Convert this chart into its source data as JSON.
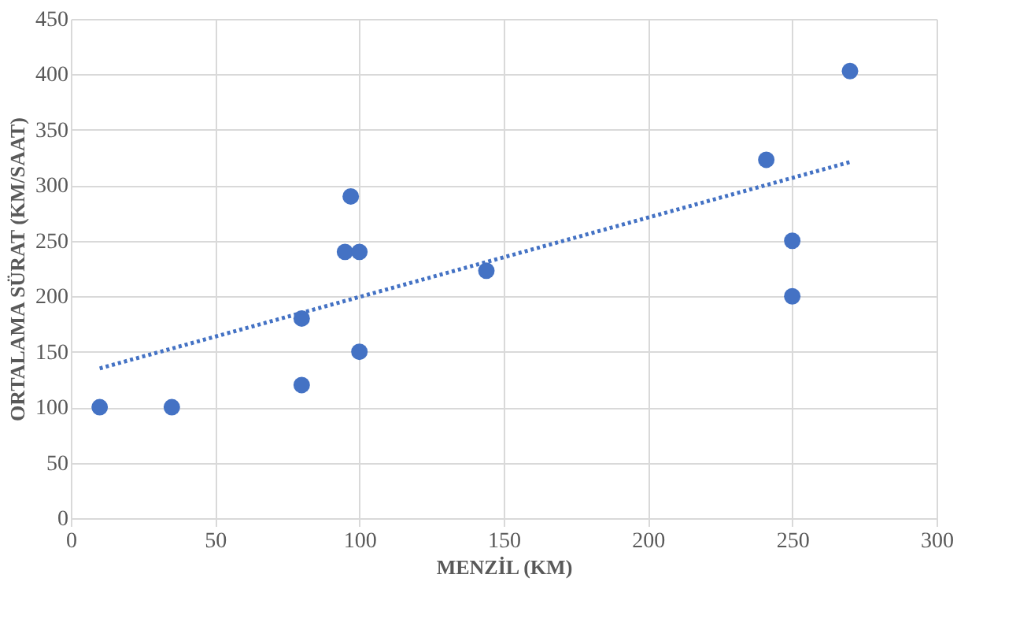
{
  "chart_data": {
    "type": "scatter",
    "xlabel": "MENZİL (KM)",
    "ylabel": "ORTALAMA SÜRAT (KM/SAAT)",
    "xlim": [
      0,
      300
    ],
    "xticks": [
      0,
      50,
      100,
      150,
      200,
      250,
      300
    ],
    "ylim": [
      0,
      450
    ],
    "yticks": [
      0,
      50,
      100,
      150,
      200,
      250,
      300,
      350,
      400,
      450
    ],
    "grid": true,
    "series": [
      {
        "marker": "circle",
        "color": "#4472c4",
        "x": [
          10,
          35,
          80,
          80,
          97,
          95,
          100,
          100,
          144,
          241,
          250,
          250,
          270
        ],
        "values": [
          100,
          100,
          180,
          120,
          290,
          240,
          240,
          150,
          223,
          323,
          250,
          200,
          403
        ]
      },
      {
        "type": "line",
        "marker": "none",
        "line_style": "dotted",
        "color": "#4472c4",
        "x": [
          10,
          270
        ],
        "values": [
          135,
          321
        ]
      }
    ]
  }
}
